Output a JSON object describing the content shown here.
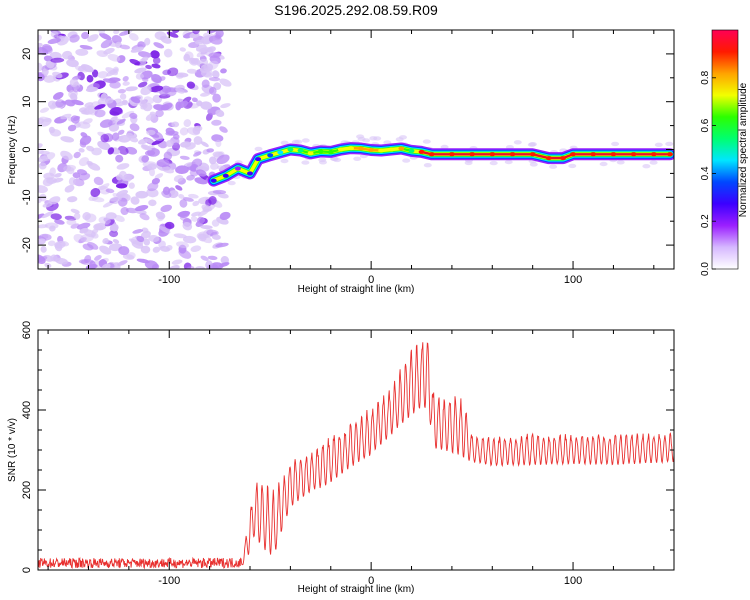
{
  "title": "S196.2025.292.08.59.R09",
  "colors": {
    "snr_line": "#e8302f",
    "spec_low": "#d9c4f7",
    "spec_mid": "#7a1fe6",
    "track_core": "#e8102a"
  },
  "colormap": [
    "#ffffff",
    "#d6b8ff",
    "#9b1fff",
    "#3c00ff",
    "#0047ff",
    "#00e6ff",
    "#00ff70",
    "#2cff00",
    "#f2ff00",
    "#ffa300",
    "#ff1a00",
    "#ff0055"
  ],
  "chart_data": [
    {
      "type": "heatmap",
      "xlabel": "Height of straight line (km)",
      "ylabel": "Frequency (Hz)",
      "xlim": [
        -165,
        150
      ],
      "ylim": [
        -25,
        25
      ],
      "xticks": [
        "-100",
        "0",
        "100"
      ],
      "yticks": [
        "20",
        "10",
        "0",
        "-10",
        "-20"
      ],
      "xtick_values": [
        -100,
        0,
        100
      ],
      "ytick_values": [
        20,
        10,
        0,
        -10,
        -20
      ],
      "colorbar": {
        "label": "Normalized spectral amplitude",
        "range": [
          0,
          1
        ],
        "ticks": [
          "0.0",
          "0.2",
          "0.4",
          "0.6",
          "0.8"
        ],
        "tick_values": [
          0,
          0.2,
          0.4,
          0.6,
          0.8
        ]
      },
      "noise_region_x": [
        -165,
        -72
      ],
      "track": {
        "x": [
          -78,
          -72,
          -66,
          -60,
          -56,
          -50,
          -45,
          -40,
          -35,
          -30,
          -25,
          -20,
          -15,
          -10,
          -5,
          0,
          5,
          10,
          15,
          20,
          25,
          30,
          40,
          50,
          60,
          70,
          80,
          88,
          95,
          100,
          110,
          120,
          130,
          140,
          148
        ],
        "y": [
          -6.5,
          -5.5,
          -4,
          -5,
          -2,
          -1.2,
          -0.6,
          0,
          -0.2,
          -0.8,
          -0.4,
          -0.5,
          0,
          0.3,
          0.2,
          -0.1,
          -0.2,
          0,
          0.2,
          -0.3,
          -0.5,
          -1,
          -1,
          -1,
          -1,
          -1,
          -1,
          -1.8,
          -1.8,
          -1,
          -1,
          -1,
          -1,
          -1,
          -1
        ],
        "amplitude": [
          0.25,
          0.3,
          0.2,
          0.25,
          0.3,
          0.35,
          0.45,
          0.5,
          0.55,
          0.7,
          0.6,
          0.65,
          0.7,
          0.75,
          0.8,
          0.85,
          0.75,
          0.7,
          0.8,
          0.55,
          0.9,
          0.95,
          0.95,
          0.95,
          0.95,
          0.95,
          0.95,
          0.95,
          0.9,
          0.9,
          0.92,
          0.95,
          0.95,
          0.95,
          0.95
        ]
      }
    },
    {
      "type": "line",
      "xlabel": "Height of straight line (km)",
      "ylabel": "SNR (10 * v/v)",
      "xlim": [
        -165,
        150
      ],
      "ylim": [
        0,
        600
      ],
      "xticks": [
        "-100",
        "0",
        "100"
      ],
      "yticks": [
        "600",
        "400",
        "200",
        "0"
      ],
      "xtick_values": [
        -100,
        0,
        100
      ],
      "ytick_values": [
        600,
        400,
        200,
        0
      ],
      "series": [
        {
          "envelope": {
            "x": [
              -165,
              -120,
              -80,
              -64,
              -60,
              -58,
              -52,
              -48,
              -44,
              -40,
              -30,
              -20,
              -10,
              0,
              10,
              20,
              25,
              28,
              30,
              32,
              40,
              45,
              50,
              60,
              80,
              100,
              120,
              150
            ],
            "upper": [
              30,
              30,
              30,
              32,
              150,
              230,
              220,
              200,
              240,
              280,
              300,
              340,
              370,
              410,
              460,
              560,
              590,
              600,
              470,
              440,
              445,
              440,
              340,
              335,
              345,
              340,
              345,
              345
            ],
            "lower": [
              5,
              5,
              5,
              5,
              30,
              60,
              20,
              10,
              80,
              140,
              180,
              200,
              240,
              270,
              320,
              360,
              380,
              370,
              330,
              280,
              270,
              260,
              260,
              250,
              250,
              255,
              250,
              260
            ]
          }
        }
      ]
    }
  ]
}
